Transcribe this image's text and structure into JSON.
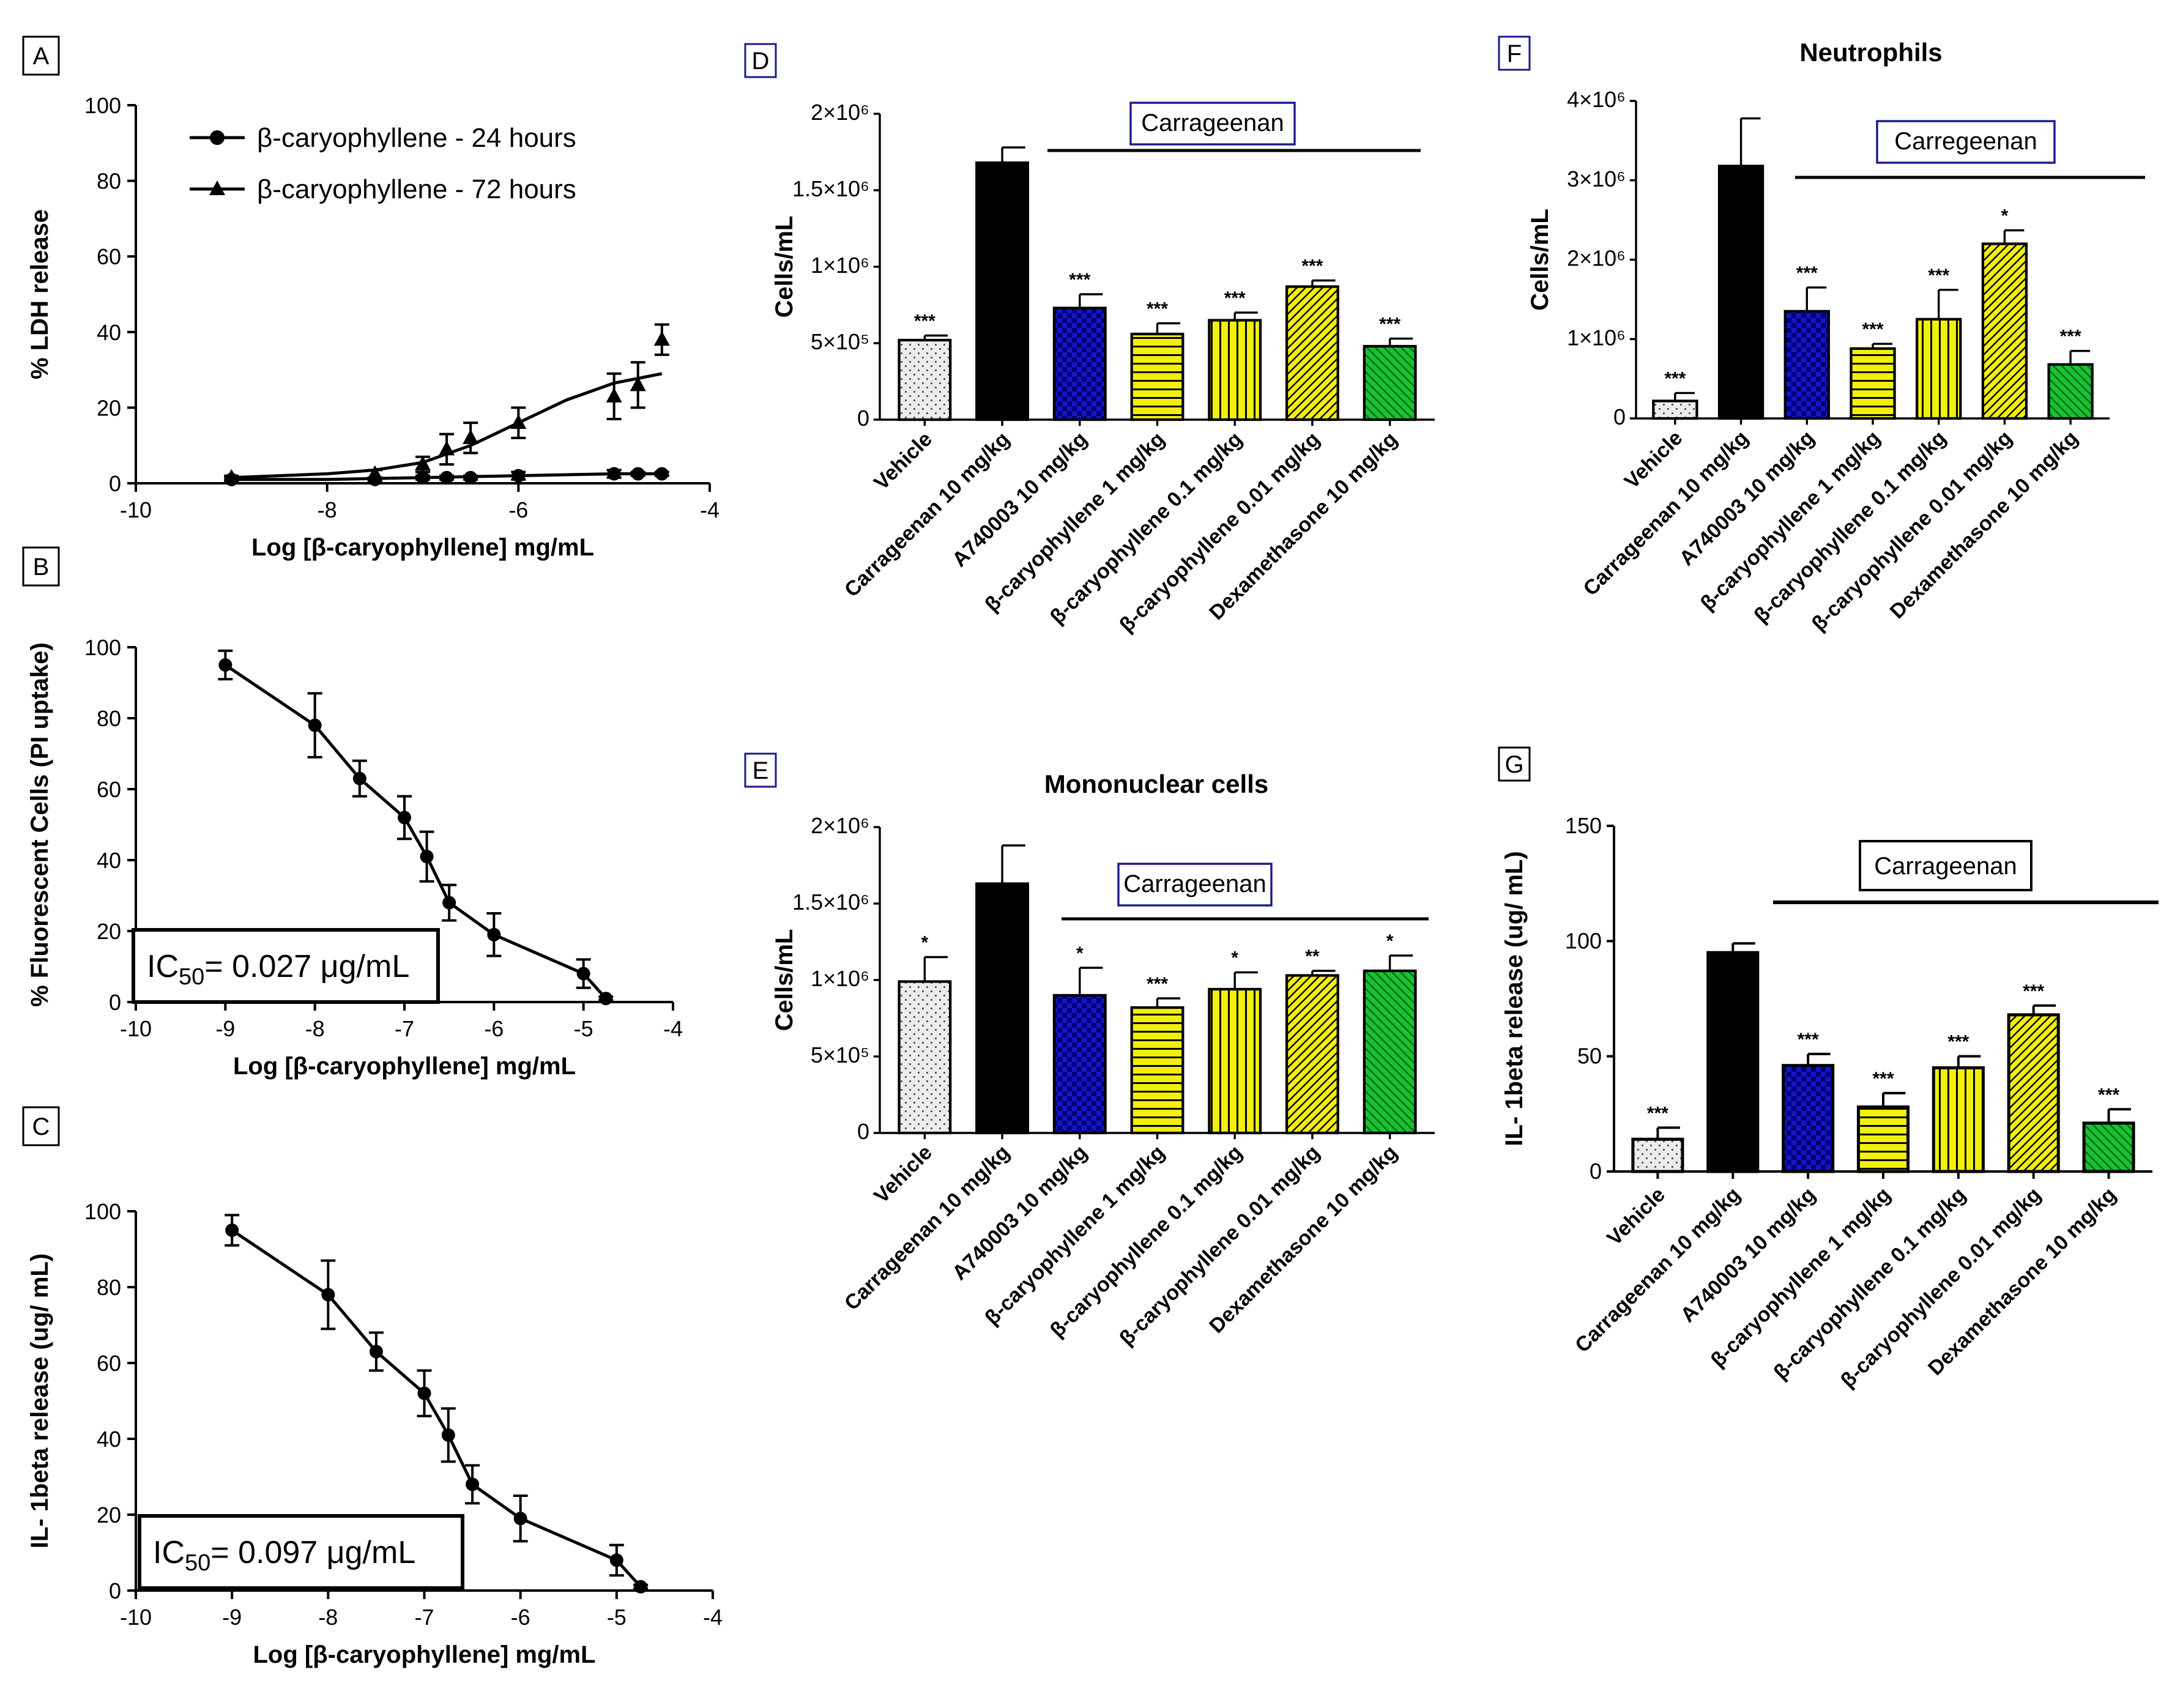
{
  "colors": {
    "black": "#000000",
    "navy": "#1a1a8a",
    "purple": "#7a1fa2",
    "vehicle_fill": "#ececec",
    "carrageenan_fill": "#000000",
    "a740003_fill": "#1515c8",
    "beta_fill": "#f2ef0c",
    "dexa_fill": "#19c233"
  },
  "chart_data": [
    {
      "id": "A",
      "panel_label": "A",
      "type": "line",
      "ylabel": "% LDH release",
      "xlabel": "Log [β-caryophyllene] mg/mL",
      "xlim": [
        -10,
        -4
      ],
      "ylim": [
        0,
        100
      ],
      "xticks": [
        "-10",
        "-8",
        "-6",
        "-4"
      ],
      "xtick_values": [
        -10,
        -8,
        -6,
        -4
      ],
      "yticks": [
        "0",
        "20",
        "40",
        "60",
        "80",
        "100"
      ],
      "ytick_values": [
        0,
        20,
        40,
        60,
        80,
        100
      ],
      "series": [
        {
          "name": "β-caryophyllene - 24 hours",
          "marker": "circle",
          "x": [
            -9,
            -7.5,
            -7,
            -6.75,
            -6.5,
            -6,
            -5,
            -4.75,
            -4.5
          ],
          "y": [
            1,
            1,
            1.5,
            1.5,
            1.5,
            2,
            2.5,
            2.5,
            2.5
          ],
          "err": [
            0.5,
            0.5,
            0.5,
            0.5,
            0.5,
            1,
            1,
            0.5,
            0.5
          ],
          "fit_x": [
            -9,
            -8,
            -7,
            -6,
            -5,
            -4.5
          ],
          "fit_y": [
            1,
            1,
            1.5,
            2,
            2.5,
            2.5
          ]
        },
        {
          "name": "β-caryophyllene - 72 hours",
          "marker": "triangle",
          "x": [
            -9,
            -7.5,
            -7,
            -6.75,
            -6.5,
            -6,
            -5,
            -4.75,
            -4.5
          ],
          "y": [
            1.5,
            2.5,
            5,
            9,
            12,
            16,
            23,
            26,
            38
          ],
          "err": [
            0.5,
            1,
            2,
            4,
            4,
            4,
            6,
            6,
            4
          ],
          "fit_x": [
            -9,
            -8.5,
            -8,
            -7.5,
            -7,
            -6.5,
            -6,
            -5.5,
            -5,
            -4.5
          ],
          "fit_y": [
            1.5,
            2,
            2.5,
            3.5,
            5.5,
            10,
            16,
            22,
            26.5,
            29
          ]
        }
      ]
    },
    {
      "id": "B",
      "panel_label": "B",
      "type": "line",
      "ylabel": "% Fluorescent Cells (PI uptake)",
      "xlabel": "Log [β-caryophyllene] mg/mL",
      "xlim": [
        -10,
        -4
      ],
      "ylim": [
        0,
        100
      ],
      "xticks": [
        "-10",
        "-9",
        "-8",
        "-7",
        "-6",
        "-5",
        "-4"
      ],
      "xtick_values": [
        -10,
        -9,
        -8,
        -7,
        -6,
        -5,
        -4
      ],
      "yticks": [
        "0",
        "20",
        "40",
        "60",
        "80",
        "100"
      ],
      "ytick_values": [
        0,
        20,
        40,
        60,
        80,
        100
      ],
      "ic50_prefix": "IC",
      "ic50_sub": "50",
      "ic50_suffix": "= 0.027 μg/mL",
      "series": [
        {
          "name": "β-caryophyllene",
          "x": [
            -9,
            -8,
            -7.5,
            -7,
            -6.75,
            -6.5,
            -6,
            -5,
            -4.75
          ],
          "y": [
            95,
            78,
            63,
            52,
            41,
            28,
            19,
            8,
            1
          ],
          "err": [
            4,
            9,
            5,
            6,
            7,
            5,
            6,
            4,
            0.5
          ]
        }
      ]
    },
    {
      "id": "C",
      "panel_label": "C",
      "type": "line",
      "ylabel": "IL- 1beta release (ug/ mL)",
      "xlabel": "Log [β-caryophyllene] mg/mL",
      "xlim": [
        -10,
        -4
      ],
      "ylim": [
        0,
        100
      ],
      "xticks": [
        "-10",
        "-9",
        "-8",
        "-7",
        "-6",
        "-5",
        "-4"
      ],
      "xtick_values": [
        -10,
        -9,
        -8,
        -7,
        -6,
        -5,
        -4
      ],
      "yticks": [
        "0",
        "20",
        "40",
        "60",
        "80",
        "100"
      ],
      "ytick_values": [
        0,
        20,
        40,
        60,
        80,
        100
      ],
      "ic50_prefix": "IC",
      "ic50_sub": "50",
      "ic50_suffix": "= 0.097 μg/mL",
      "series": [
        {
          "name": "β-caryophyllene",
          "x": [
            -9,
            -8,
            -7.5,
            -7,
            -6.75,
            -6.5,
            -6,
            -5,
            -4.75
          ],
          "y": [
            95,
            78,
            63,
            52,
            41,
            28,
            19,
            8,
            1
          ],
          "err": [
            4,
            9,
            5,
            6,
            7,
            5,
            6,
            4,
            0.5
          ]
        }
      ]
    },
    {
      "id": "D",
      "panel_label": "D",
      "type": "bar",
      "title": "",
      "ylabel": "Cells/mL",
      "ylim": [
        0,
        2000000
      ],
      "yticks": [
        "0",
        "5×10⁵",
        "1×10⁶",
        "1.5×10⁶",
        "2×10⁶"
      ],
      "ytick_values": [
        0,
        500000,
        1000000,
        1500000,
        2000000
      ],
      "bracket_label": "Carrageenan",
      "categories": [
        "Vehicle",
        "Carrageenan 10 mg/kg",
        "A740003 10 mg/kg",
        "β-caryophyllene 1 mg/kg",
        "β-caryophyllene 0.1 mg/kg",
        "β-caryophyllene 0.01 mg/kg",
        "Dexamethasone 10 mg/kg"
      ],
      "values": [
        520000,
        1680000,
        730000,
        560000,
        650000,
        870000,
        480000
      ],
      "errors": [
        30000,
        100000,
        90000,
        70000,
        50000,
        40000,
        50000
      ],
      "significance": [
        "***",
        "",
        "***",
        "***",
        "***",
        "***",
        "***"
      ]
    },
    {
      "id": "E",
      "panel_label": "E",
      "type": "bar",
      "title": "Mononuclear cells",
      "ylabel": "Cells/mL",
      "ylim": [
        0,
        2000000
      ],
      "yticks": [
        "0",
        "5×10⁵",
        "1×10⁶",
        "1.5×10⁶",
        "2×10⁶"
      ],
      "ytick_values": [
        0,
        500000,
        1000000,
        1500000,
        2000000
      ],
      "bracket_label": "Carrageenan",
      "categories": [
        "Vehicle",
        "Carrageenan 10 mg/kg",
        "A740003 10 mg/kg",
        "β-caryophyllene 1 mg/kg",
        "β-caryophyllene 0.1 mg/kg",
        "β-caryophyllene 0.01 mg/kg",
        "Dexamethasone 10 mg/kg"
      ],
      "values": [
        990000,
        1630000,
        900000,
        820000,
        940000,
        1030000,
        1060000
      ],
      "errors": [
        160000,
        250000,
        180000,
        60000,
        110000,
        30000,
        100000
      ],
      "significance": [
        "*",
        "",
        "*",
        "***",
        "*",
        "**",
        "*"
      ]
    },
    {
      "id": "F",
      "panel_label": "F",
      "type": "bar",
      "title": "Neutrophils",
      "ylabel": "Cells/mL",
      "ylim": [
        0,
        4000000
      ],
      "yticks": [
        "0",
        "1×10⁶",
        "2×10⁶",
        "3×10⁶",
        "4×10⁶"
      ],
      "ytick_values": [
        0,
        1000000,
        2000000,
        3000000,
        4000000
      ],
      "bracket_label": "Carregeenan",
      "categories": [
        "Vehicle",
        "Carrageenan 10 mg/kg",
        "A740003 10 mg/kg",
        "β-caryophyllene 1 mg/kg",
        "β-caryophyllene 0.1 mg/kg",
        "β-caryophyllene 0.01 mg/kg",
        "Dexamethasone 10 mg/kg"
      ],
      "values": [
        220000,
        3180000,
        1350000,
        880000,
        1250000,
        2200000,
        680000
      ],
      "errors": [
        100000,
        600000,
        300000,
        60000,
        370000,
        170000,
        170000
      ],
      "significance": [
        "***",
        "",
        "***",
        "***",
        "***",
        "*",
        "***"
      ]
    },
    {
      "id": "G",
      "panel_label": "G",
      "type": "bar",
      "title": "",
      "ylabel": "IL- 1beta release (ug/ mL)",
      "ylim": [
        0,
        150
      ],
      "yticks": [
        "0",
        "50",
        "100",
        "150"
      ],
      "ytick_values": [
        0,
        50,
        100,
        150
      ],
      "bracket_label": "Carrageenan",
      "categories": [
        "Vehicle",
        "Carrageenan 10 mg/kg",
        "A740003 10 mg/kg",
        "β-caryophyllene 1 mg/kg",
        "β-caryophyllene 0.1 mg/kg",
        "β-caryophyllene 0.01 mg/kg",
        "Dexamethasone 10 mg/kg"
      ],
      "values": [
        14,
        95,
        46,
        28,
        45,
        68,
        21
      ],
      "errors": [
        5,
        4,
        5,
        6,
        5,
        4,
        6
      ],
      "significance": [
        "***",
        "",
        "***",
        "***",
        "***",
        "***",
        "***"
      ]
    }
  ]
}
